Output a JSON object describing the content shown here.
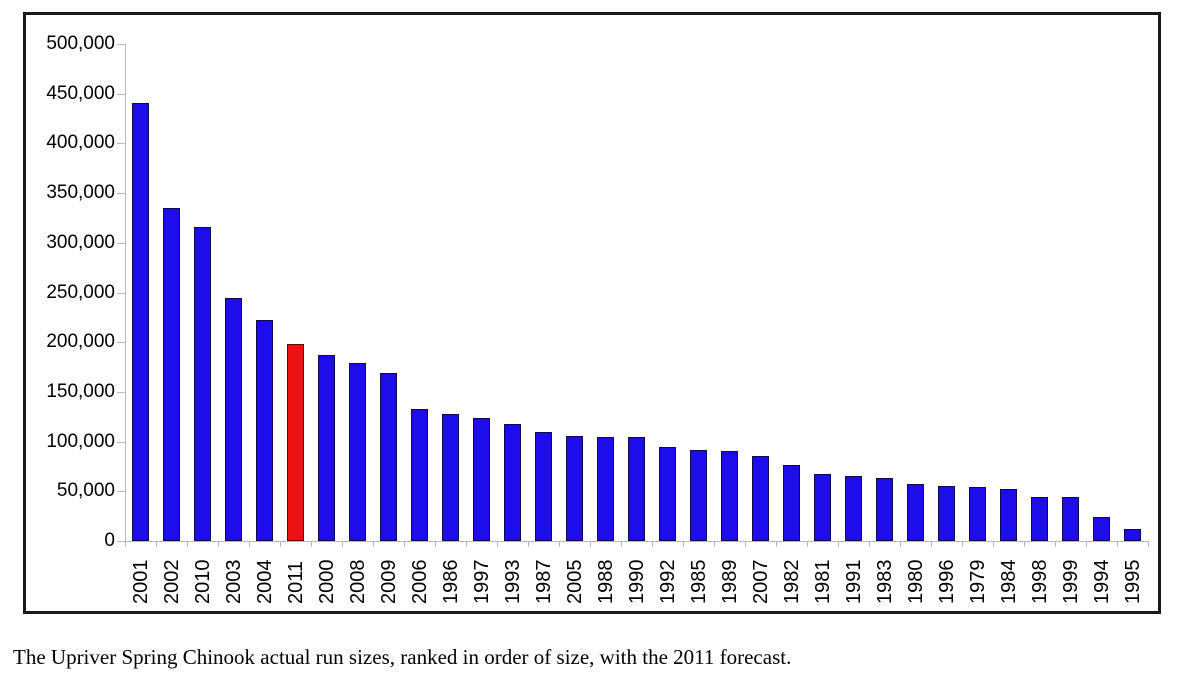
{
  "caption": "The Upriver Spring Chinook actual run sizes, ranked in order of size, with the 2011 forecast.",
  "chart_data": {
    "type": "bar",
    "title": "",
    "xlabel": "",
    "ylabel": "",
    "categories": [
      "2001",
      "2002",
      "2010",
      "2003",
      "2004",
      "2011",
      "2000",
      "2008",
      "2009",
      "2006",
      "1986",
      "1997",
      "1993",
      "1987",
      "2005",
      "1988",
      "1990",
      "1992",
      "1985",
      "1989",
      "2007",
      "1982",
      "1981",
      "1991",
      "1983",
      "1980",
      "1996",
      "1979",
      "1984",
      "1998",
      "1999",
      "1994",
      "1995"
    ],
    "values": [
      441000,
      335000,
      316000,
      244000,
      222000,
      198000,
      187000,
      179000,
      169000,
      133000,
      128000,
      124000,
      118000,
      110000,
      106000,
      105000,
      105000,
      95000,
      92000,
      91000,
      86000,
      76000,
      67000,
      65000,
      63000,
      57000,
      55000,
      54000,
      52000,
      44000,
      44000,
      24000,
      12000
    ],
    "highlight_category": "2011",
    "highlight_index": 5,
    "highlight_meaning": "2011 forecast",
    "ylim": [
      0,
      500000
    ],
    "ytick_interval": 50000,
    "y_tick_labels": [
      "500,000",
      "450,000",
      "400,000",
      "350,000",
      "300,000",
      "250,000",
      "200,000",
      "150,000",
      "100,000",
      "50,000",
      "0"
    ],
    "grid": false,
    "legend": "none",
    "colors": {
      "bar_fill": "#1d0deb",
      "bar_border": "#14074f",
      "highlight_fill": "#ee1111",
      "highlight_border": "#5e0707",
      "axis": "#b8b8b8",
      "text": "#000000",
      "frame_border": "#1a1a1a"
    }
  }
}
